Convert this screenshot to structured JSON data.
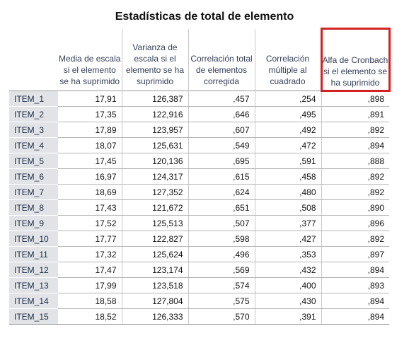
{
  "table": {
    "title": "Estadísticas de total de elemento",
    "highlight_color": "#d42222",
    "columns": [
      "Media de escala si el elemento se ha suprimido",
      "Varianza de escala si el elemento se ha suprimido",
      "Correlación total de elementos corregida",
      "Correlación múltiple al cuadrado",
      "Alfa de Cronbach si el elemento se ha suprimido"
    ],
    "highlighted_column_index": 4,
    "rows": [
      {
        "label": "ITEM_1",
        "values": [
          "17,91",
          "126,387",
          ",457",
          ",254",
          ",898"
        ]
      },
      {
        "label": "ITEM_2",
        "values": [
          "17,35",
          "122,916",
          ",646",
          ",495",
          ",891"
        ]
      },
      {
        "label": "ITEM_3",
        "values": [
          "17,89",
          "123,957",
          ",607",
          ",492",
          ",892"
        ]
      },
      {
        "label": "ITEM_4",
        "values": [
          "18,07",
          "125,631",
          ",549",
          ",472",
          ",894"
        ]
      },
      {
        "label": "ITEM_5",
        "values": [
          "17,45",
          "120,136",
          ",695",
          ",591",
          ",888"
        ]
      },
      {
        "label": "ITEM_6",
        "values": [
          "16,97",
          "124,317",
          ",615",
          ",458",
          ",892"
        ]
      },
      {
        "label": "ITEM_7",
        "values": [
          "18,69",
          "127,352",
          ",624",
          ",480",
          ",892"
        ]
      },
      {
        "label": "ITEM_8",
        "values": [
          "17,43",
          "121,672",
          ",651",
          ",508",
          ",890"
        ]
      },
      {
        "label": "ITEM_9",
        "values": [
          "17,52",
          "125,513",
          ",507",
          ",377",
          ",896"
        ]
      },
      {
        "label": "ITEM_10",
        "values": [
          "17,77",
          "122,827",
          ",598",
          ",427",
          ",892"
        ]
      },
      {
        "label": "ITEM_11",
        "values": [
          "17,32",
          "125,624",
          ",496",
          ",353",
          ",897"
        ]
      },
      {
        "label": "ITEM_12",
        "values": [
          "17,47",
          "123,174",
          ",569",
          ",432",
          ",894"
        ]
      },
      {
        "label": "ITEM_13",
        "values": [
          "17,99",
          "123,518",
          ",574",
          ",400",
          ",893"
        ]
      },
      {
        "label": "ITEM_14",
        "values": [
          "18,58",
          "127,804",
          ",575",
          ",430",
          ",894"
        ]
      },
      {
        "label": "ITEM_15",
        "values": [
          "18,52",
          "126,333",
          ",570",
          ",391",
          ",894"
        ]
      }
    ]
  }
}
